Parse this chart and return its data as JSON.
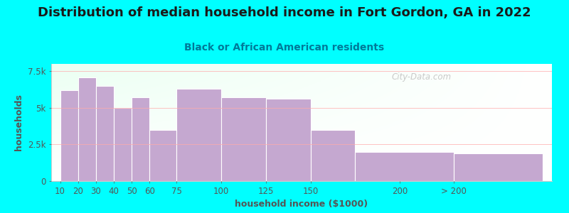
{
  "title": "Distribution of median household income in Fort Gordon, GA in 2022",
  "subtitle": "Black or African American residents",
  "xlabel": "household income ($1000)",
  "ylabel": "households",
  "bar_lefts": [
    10,
    20,
    30,
    40,
    50,
    60,
    75,
    100,
    125,
    150,
    175,
    230
  ],
  "bar_widths": [
    10,
    10,
    10,
    10,
    10,
    15,
    25,
    25,
    25,
    25,
    55,
    50
  ],
  "bar_values": [
    6200,
    7100,
    6500,
    5000,
    5700,
    3500,
    6300,
    5700,
    5600,
    3500,
    2000,
    1900
  ],
  "bar_color": "#C5A8D0",
  "background_color": "#00FFFF",
  "title_fontsize": 13,
  "subtitle_fontsize": 10,
  "axis_label_fontsize": 9,
  "tick_fontsize": 8.5,
  "ylim": [
    0,
    8000
  ],
  "yticks": [
    0,
    2500,
    5000,
    7500
  ],
  "ytick_labels": [
    "0",
    "2.5k",
    "5k",
    "7.5k"
  ],
  "xtick_positions": [
    10,
    20,
    30,
    40,
    50,
    60,
    75,
    100,
    125,
    150,
    200,
    230
  ],
  "xtick_labels": [
    "10",
    "20",
    "30",
    "40",
    "50",
    "60",
    "75",
    "100",
    "125",
    "150",
    "200",
    "> 200"
  ],
  "watermark": "City-Data.com",
  "xlim": [
    5,
    285
  ]
}
